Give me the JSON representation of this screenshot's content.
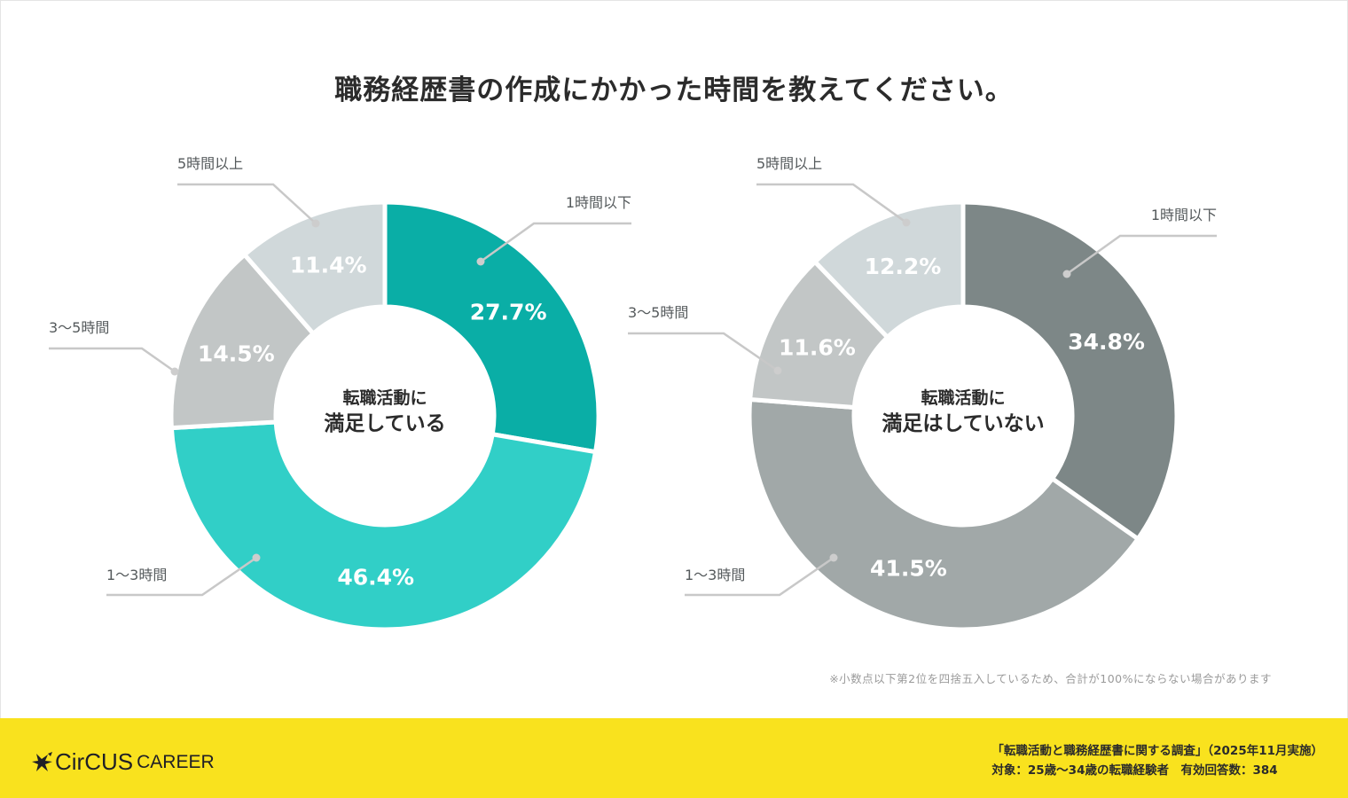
{
  "page": {
    "title": "職務経歴書の作成にかかった時間を教えてください。",
    "note": "※小数点以下第2位を四捨五入しているため、合計が100%にならない場合があります"
  },
  "footer": {
    "logo_text": "CirCUS",
    "logo_sub": "CAREER",
    "logo_icon": "star-burst-icon",
    "survey_line": "「転職活動と職務経歴書に関する調査」（2025年11月実施）",
    "target_line": "対象：25歳〜34歳の転職経験者　有効回答数：384",
    "background_color": "#f9e21e"
  },
  "chart_data": [
    {
      "type": "pie",
      "variant": "donut",
      "title": "転職活動に満足している",
      "center_label": [
        "転職活動に",
        "満足している"
      ],
      "categories": [
        "1時間以下",
        "1〜3時間",
        "3〜5時間",
        "5時間以上"
      ],
      "values": [
        27.7,
        46.4,
        14.5,
        11.4
      ],
      "labels": [
        "27.7%",
        "46.4%",
        "14.5%",
        "11.4%"
      ],
      "colors": [
        "#0aaea6",
        "#31cfc7",
        "#c2c6c6",
        "#d0d8da"
      ],
      "start": "12 o'clock, clockwise"
    },
    {
      "type": "pie",
      "variant": "donut",
      "title": "転職活動に満足はしていない",
      "center_label": [
        "転職活動に",
        "満足はしていない"
      ],
      "categories": [
        "1時間以下",
        "1〜3時間",
        "3〜5時間",
        "5時間以上"
      ],
      "values": [
        34.8,
        41.5,
        11.6,
        12.2
      ],
      "labels": [
        "34.8%",
        "41.5%",
        "11.6%",
        "12.2%"
      ],
      "colors": [
        "#7d8787",
        "#a1a8a8",
        "#c2c6c6",
        "#d0d8da"
      ],
      "start": "12 o'clock, clockwise"
    }
  ]
}
